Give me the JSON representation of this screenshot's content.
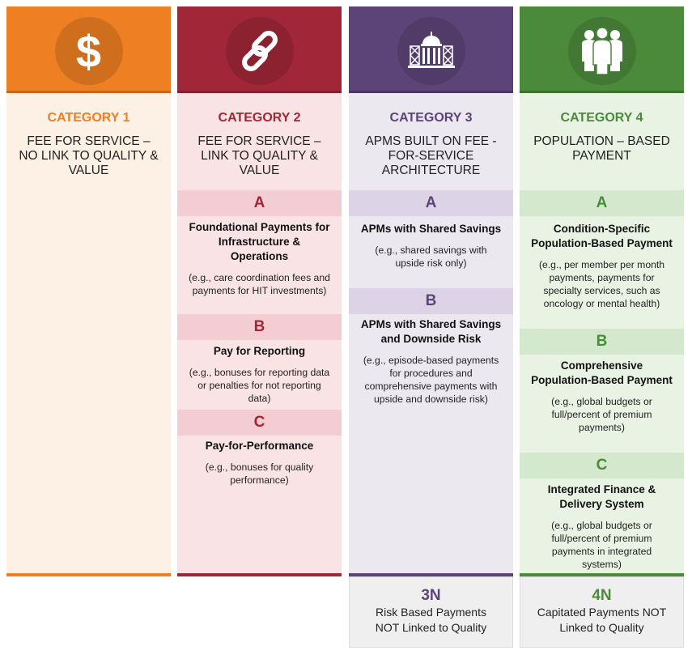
{
  "colors": {
    "cat1": "#ee7f22",
    "cat2": "#a12638",
    "cat3": "#5c4479",
    "cat4": "#4c8a3b"
  },
  "columns": [
    {
      "icon": "dollar-icon",
      "category": "CATEGORY 1",
      "title": "FEE FOR SERVICE – NO LINK TO QUALITY & VALUE",
      "subs": []
    },
    {
      "icon": "chain-link-icon",
      "category": "CATEGORY 2",
      "title": "FEE FOR SERVICE – LINK TO QUALITY & VALUE",
      "subs": [
        {
          "letter": "A",
          "name": "Foundational Payments for Infrastructure & Operations",
          "example": "(e.g., care coordination fees and payments for HIT investments)"
        },
        {
          "letter": "B",
          "name": "Pay for Reporting",
          "example": "(e.g., bonuses for reporting data or penalties for not reporting data)"
        },
        {
          "letter": "C",
          "name": "Pay-for-Performance",
          "example": "(e.g., bonuses for quality performance)"
        }
      ]
    },
    {
      "icon": "capitol-building-icon",
      "category": "CATEGORY 3",
      "title": "APMS BUILT ON FEE -FOR-SERVICE ARCHITECTURE",
      "subs": [
        {
          "letter": "A",
          "name": "APMs with Shared Savings",
          "example": "(e.g., shared savings with upside risk only)"
        },
        {
          "letter": "B",
          "name": "APMs with Shared Savings and Downside Risk",
          "example": "(e.g., episode-based payments for procedures and comprehensive payments with upside and downside risk)"
        }
      ],
      "n": {
        "code": "3N",
        "text": "Risk Based Payments NOT Linked to Quality"
      }
    },
    {
      "icon": "people-group-icon",
      "category": "CATEGORY 4",
      "title": "POPULATION – BASED PAYMENT",
      "subs": [
        {
          "letter": "A",
          "name": "Condition-Specific Population-Based Payment",
          "example": "(e.g., per member per month payments, payments for specialty services, such as oncology or mental health)"
        },
        {
          "letter": "B",
          "name": "Comprehensive Population-Based Payment",
          "example": "(e.g., global budgets or full/percent of premium payments)"
        },
        {
          "letter": "C",
          "name": "Integrated Finance & Delivery System",
          "example": "(e.g., global budgets or full/percent of premium payments in integrated systems)"
        }
      ],
      "n": {
        "code": "4N",
        "text": "Capitated Payments NOT Linked to Quality"
      }
    }
  ]
}
